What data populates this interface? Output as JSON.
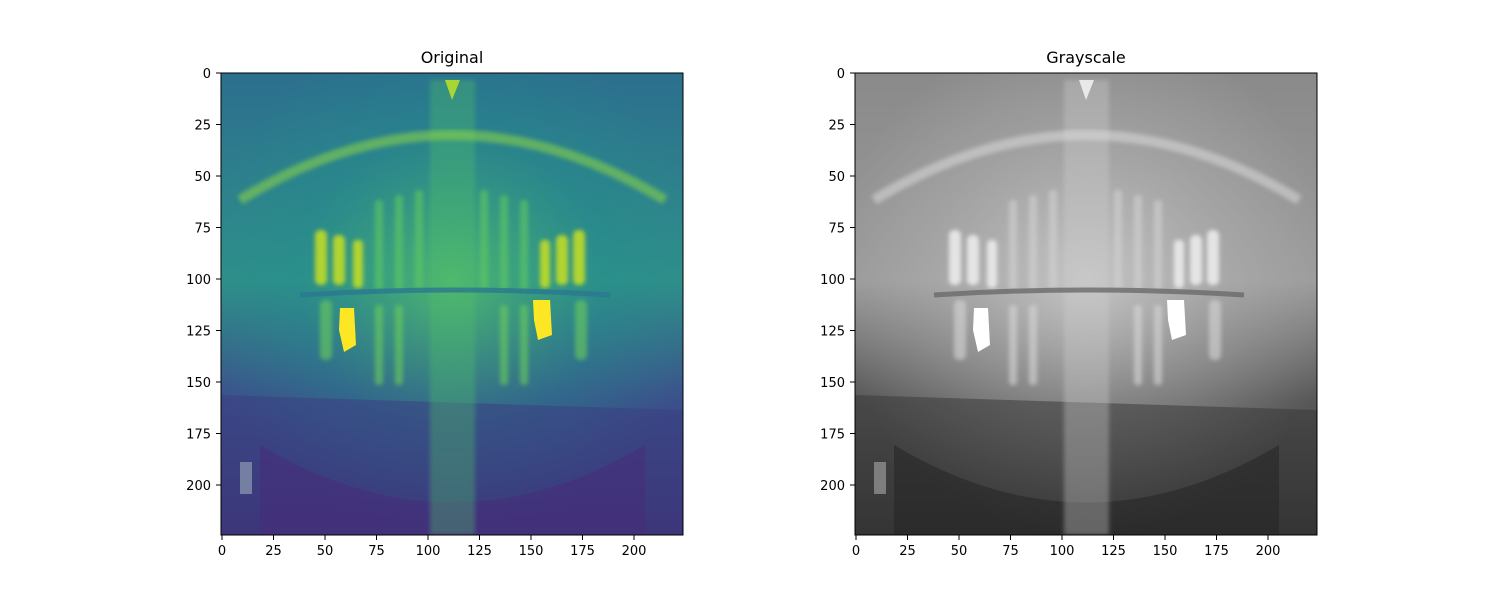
{
  "figure": {
    "panels": [
      {
        "title": "Original",
        "colormap": "viridis",
        "xticks": [
          "0",
          "25",
          "50",
          "75",
          "100",
          "125",
          "150",
          "175",
          "200"
        ],
        "yticks": [
          "0",
          "25",
          "50",
          "75",
          "100",
          "125",
          "150",
          "175",
          "200"
        ]
      },
      {
        "title": "Grayscale",
        "colormap": "gray",
        "xticks": [
          "0",
          "25",
          "50",
          "75",
          "100",
          "125",
          "150",
          "175",
          "200"
        ],
        "yticks": [
          "0",
          "25",
          "50",
          "75",
          "100",
          "125",
          "150",
          "175",
          "200"
        ]
      }
    ]
  }
}
